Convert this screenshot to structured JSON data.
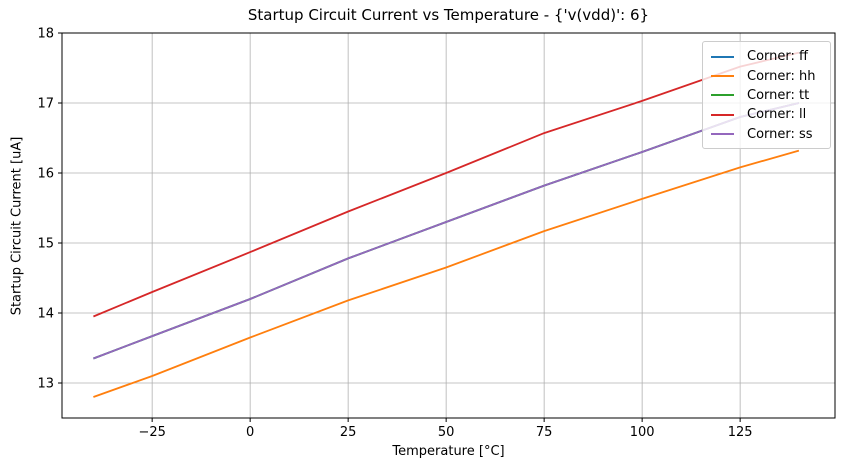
{
  "chart_data": {
    "type": "line",
    "title": "Startup Circuit Current vs Temperature - {'v(vdd)': 6}",
    "xlabel": "Temperature [°C]",
    "ylabel": "Startup Circuit Current [uA]",
    "x": [
      -40,
      -25,
      0,
      25,
      50,
      75,
      100,
      125,
      140
    ],
    "series": [
      {
        "name": "Corner: ff",
        "corner": "ff",
        "color": "#1f77b4",
        "values": [
          13.35,
          13.67,
          14.2,
          14.78,
          15.3,
          15.82,
          16.3,
          16.8,
          17.0
        ]
      },
      {
        "name": "Corner: hh",
        "corner": "hh",
        "color": "#ff7f0e",
        "values": [
          12.8,
          13.1,
          13.65,
          14.18,
          14.65,
          15.17,
          15.63,
          16.08,
          16.32
        ]
      },
      {
        "name": "Corner: tt",
        "corner": "tt",
        "color": "#2ca02c",
        "values": [
          13.35,
          13.67,
          14.2,
          14.78,
          15.3,
          15.82,
          16.3,
          16.8,
          17.0
        ]
      },
      {
        "name": "Corner: ll",
        "corner": "ll",
        "color": "#d62728",
        "values": [
          13.95,
          14.3,
          14.87,
          15.45,
          16.0,
          16.57,
          17.03,
          17.52,
          17.72
        ]
      },
      {
        "name": "Corner: ss",
        "corner": "ss",
        "color": "#9467bd",
        "values": [
          13.35,
          13.67,
          14.2,
          14.78,
          15.3,
          15.82,
          16.3,
          16.8,
          17.0
        ]
      }
    ],
    "x_ticks": [
      -25,
      0,
      25,
      50,
      75,
      100,
      125
    ],
    "x_tick_labels": [
      "−25",
      "0",
      "25",
      "50",
      "75",
      "100",
      "125"
    ],
    "y_ticks": [
      13,
      14,
      15,
      16,
      17,
      18
    ],
    "y_tick_labels": [
      "13",
      "14",
      "15",
      "16",
      "17",
      "18"
    ],
    "xlim": [
      -48,
      149.2
    ],
    "ylim": [
      12.5,
      18.0
    ],
    "grid": true,
    "grid_color": "#b0b0b0",
    "spine_color": "#000000",
    "background_color": "#ffffff",
    "legend_position": "upper right",
    "line_width": 1.8
  }
}
